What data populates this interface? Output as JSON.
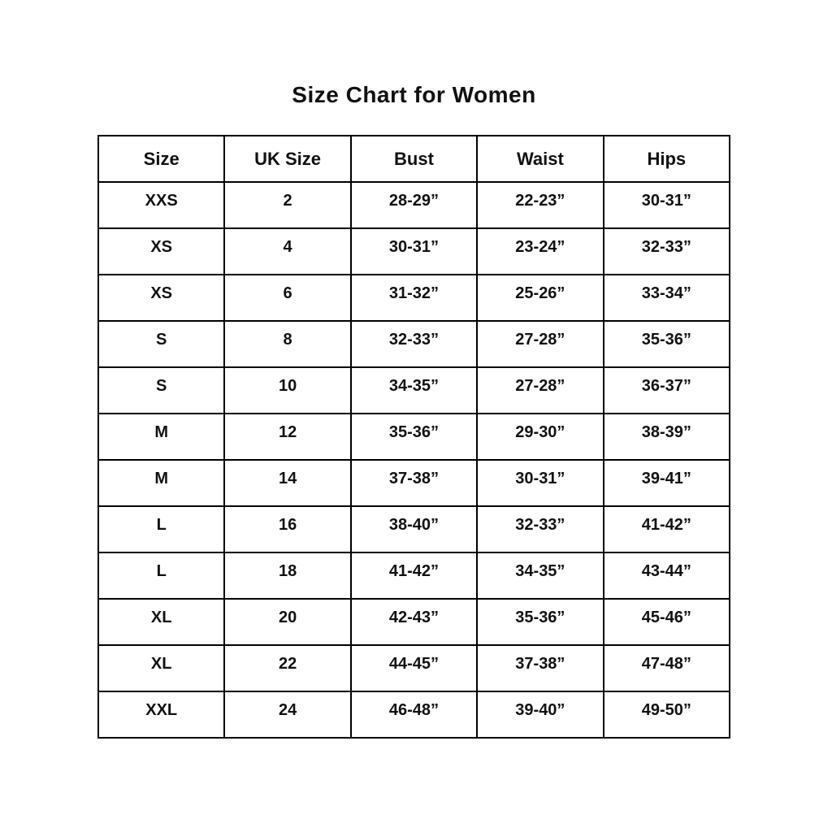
{
  "title": "Size Chart for Women",
  "colors": {
    "text": "#111111",
    "border": "#000000",
    "background": "#ffffff"
  },
  "chart_data": {
    "type": "table",
    "title": "Size Chart for Women",
    "columns": [
      "Size",
      "UK Size",
      "Bust",
      "Waist",
      "Hips"
    ],
    "rows": [
      [
        "XXS",
        "2",
        "28-29”",
        "22-23”",
        "30-31”"
      ],
      [
        "XS",
        "4",
        "30-31”",
        "23-24”",
        "32-33”"
      ],
      [
        "XS",
        "6",
        "31-32”",
        "25-26”",
        "33-34”"
      ],
      [
        "S",
        "8",
        "32-33”",
        "27-28”",
        "35-36”"
      ],
      [
        "S",
        "10",
        "34-35”",
        "27-28”",
        "36-37”"
      ],
      [
        "M",
        "12",
        "35-36”",
        "29-30”",
        "38-39”"
      ],
      [
        "M",
        "14",
        "37-38”",
        "30-31”",
        "39-41”"
      ],
      [
        "L",
        "16",
        "38-40”",
        "32-33”",
        "41-42”"
      ],
      [
        "L",
        "18",
        "41-42”",
        "34-35”",
        "43-44”"
      ],
      [
        "XL",
        "20",
        "42-43”",
        "35-36”",
        "45-46”"
      ],
      [
        "XL",
        "22",
        "44-45”",
        "37-38”",
        "47-48”"
      ],
      [
        "XXL",
        "24",
        "46-48”",
        "39-40”",
        "49-50”"
      ]
    ]
  }
}
